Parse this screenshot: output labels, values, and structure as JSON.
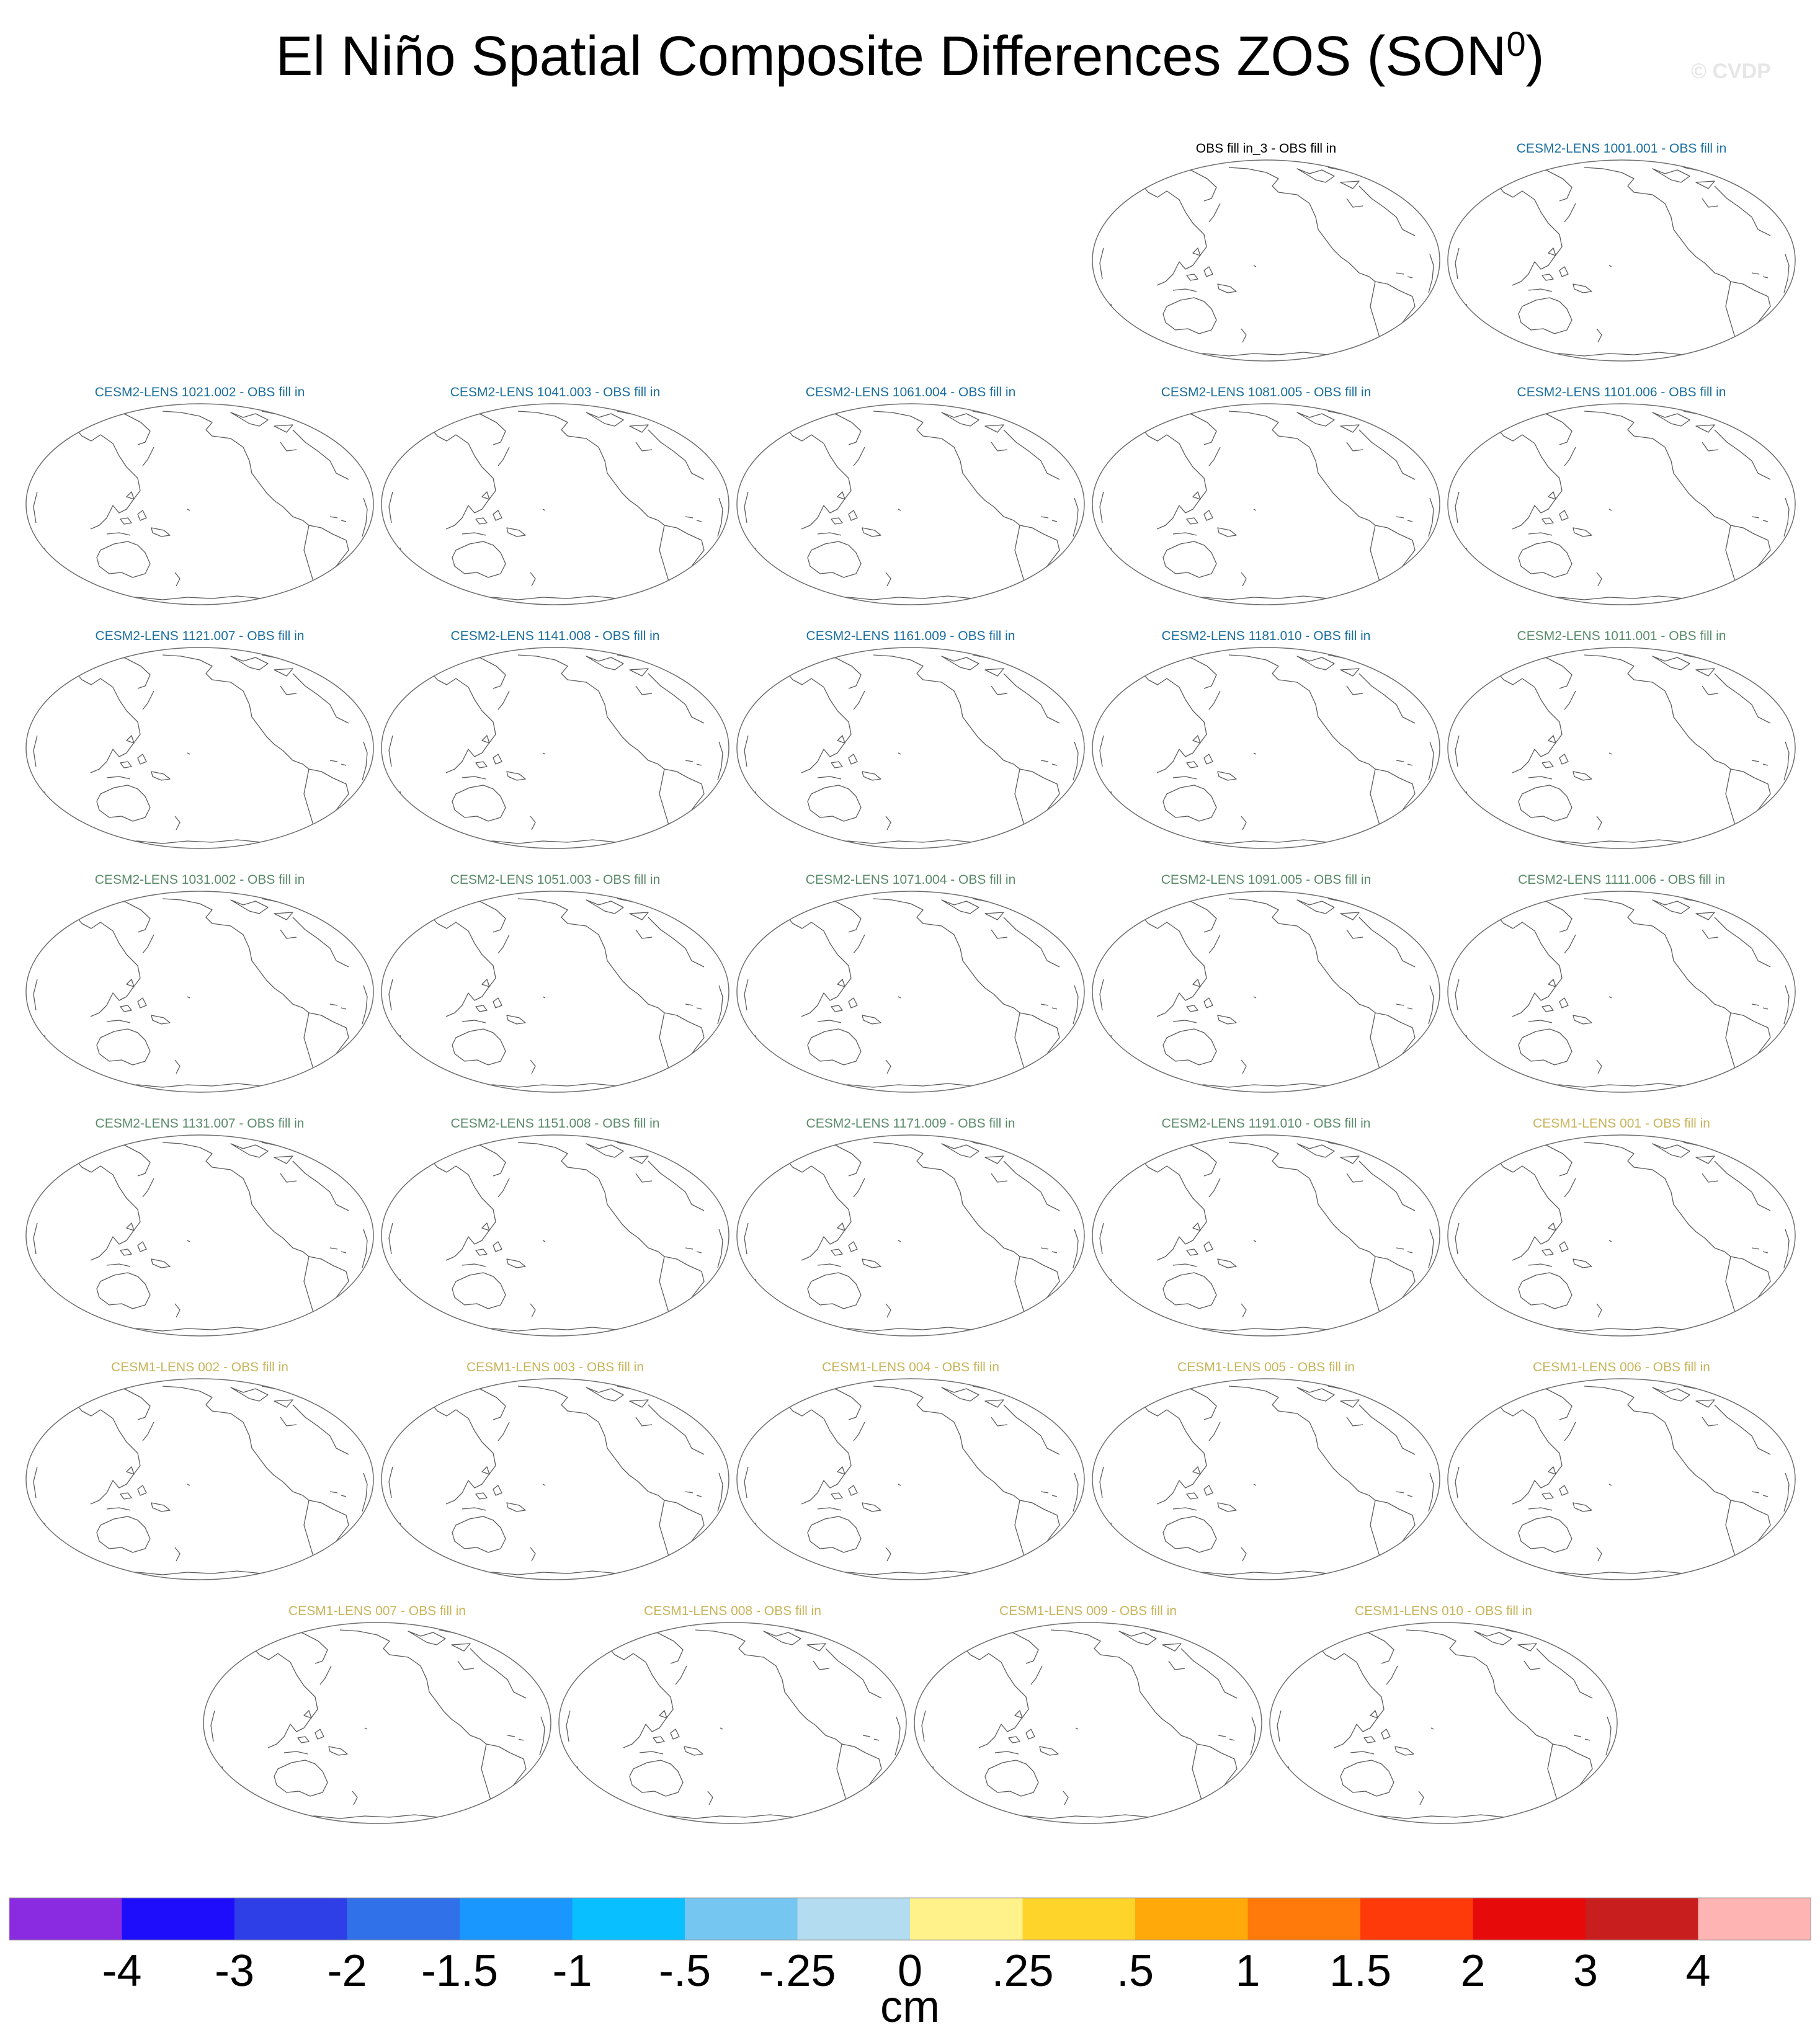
{
  "title": "El Niño Spatial Composite Differences ZOS (SON",
  "title_superscript": "0",
  "title_suffix": ")",
  "copyright": "© CVDP",
  "chart_data": {
    "type": "heatmap",
    "projection": "Robinson (Pacific-centered), coastline outlines",
    "panels": [
      {
        "title": "OBS fill in_3 - OBS fill in",
        "color": "#000000"
      },
      {
        "title": "CESM2-LENS 1001.001 - OBS fill in",
        "color": "#1a6e9e"
      },
      {
        "title": "CESM2-LENS 1021.002 - OBS fill in",
        "color": "#1a6e9e"
      },
      {
        "title": "CESM2-LENS 1041.003 - OBS fill in",
        "color": "#1a6e9e"
      },
      {
        "title": "CESM2-LENS 1061.004 - OBS fill in",
        "color": "#1a6e9e"
      },
      {
        "title": "CESM2-LENS 1081.005 - OBS fill in",
        "color": "#1a6e9e"
      },
      {
        "title": "CESM2-LENS 1101.006 - OBS fill in",
        "color": "#1a6e9e"
      },
      {
        "title": "CESM2-LENS 1121.007 - OBS fill in",
        "color": "#1a6e9e"
      },
      {
        "title": "CESM2-LENS 1141.008 - OBS fill in",
        "color": "#1a6e9e"
      },
      {
        "title": "CESM2-LENS 1161.009 - OBS fill in",
        "color": "#1a6e9e"
      },
      {
        "title": "CESM2-LENS 1181.010 - OBS fill in",
        "color": "#1a6e9e"
      },
      {
        "title": "CESM2-LENS 1011.001 - OBS fill in",
        "color": "#5a8a6a"
      },
      {
        "title": "CESM2-LENS 1031.002 - OBS fill in",
        "color": "#5a8a6a"
      },
      {
        "title": "CESM2-LENS 1051.003 - OBS fill in",
        "color": "#5a8a6a"
      },
      {
        "title": "CESM2-LENS 1071.004 - OBS fill in",
        "color": "#5a8a6a"
      },
      {
        "title": "CESM2-LENS 1091.005 - OBS fill in",
        "color": "#5a8a6a"
      },
      {
        "title": "CESM2-LENS 1111.006 - OBS fill in",
        "color": "#5a8a6a"
      },
      {
        "title": "CESM2-LENS 1131.007 - OBS fill in",
        "color": "#5a8a6a"
      },
      {
        "title": "CESM2-LENS 1151.008 - OBS fill in",
        "color": "#5a8a6a"
      },
      {
        "title": "CESM2-LENS 1171.009 - OBS fill in",
        "color": "#5a8a6a"
      },
      {
        "title": "CESM2-LENS 1191.010 - OBS fill in",
        "color": "#5a8a6a"
      },
      {
        "title": "CESM1-LENS 001 - OBS fill in",
        "color": "#c8b45a"
      },
      {
        "title": "CESM1-LENS 002 - OBS fill in",
        "color": "#c8b45a"
      },
      {
        "title": "CESM1-LENS 003 - OBS fill in",
        "color": "#c8b45a"
      },
      {
        "title": "CESM1-LENS 004 - OBS fill in",
        "color": "#c8b45a"
      },
      {
        "title": "CESM1-LENS 005 - OBS fill in",
        "color": "#c8b45a"
      },
      {
        "title": "CESM1-LENS 006 - OBS fill in",
        "color": "#c8b45a"
      },
      {
        "title": "CESM1-LENS 007 - OBS fill in",
        "color": "#c8b45a"
      },
      {
        "title": "CESM1-LENS 008 - OBS fill in",
        "color": "#c8b45a"
      },
      {
        "title": "CESM1-LENS 009 - OBS fill in",
        "color": "#c8b45a"
      },
      {
        "title": "CESM1-LENS 010 - OBS fill in",
        "color": "#c8b45a"
      }
    ],
    "colorbar": {
      "unit": "cm",
      "tick_labels": [
        "-4",
        "-3",
        "-2",
        "-1.5",
        "-1",
        "-.5",
        "-.25",
        "0",
        ".25",
        ".5",
        "1",
        "1.5",
        "2",
        "3",
        "4"
      ],
      "colors": [
        "#8a2be2",
        "#1e0dfa",
        "#2f3fe8",
        "#3070e8",
        "#1a96ff",
        "#0abfff",
        "#75c6f0",
        "#b3dcf0",
        "#fff28a",
        "#ffd42a",
        "#ffaa0a",
        "#ff7a0a",
        "#ff3a0a",
        "#e60a0a",
        "#c81e1e",
        "#ffb4b4"
      ]
    },
    "panel_fill_visible": false
  }
}
